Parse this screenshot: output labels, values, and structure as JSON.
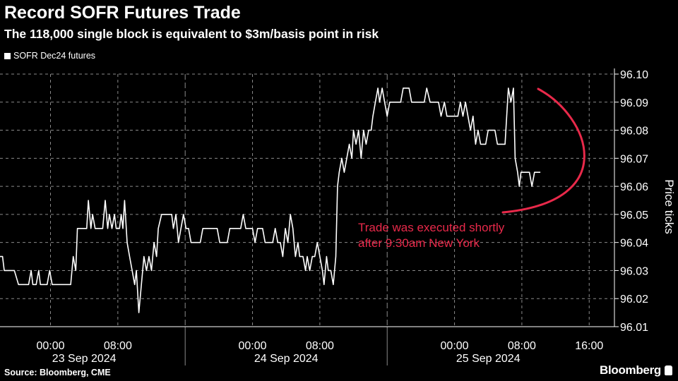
{
  "header": {
    "title": "Record SOFR Futures Trade",
    "subtitle": "The 118,000 single block is equivalent to $3m/basis point in risk"
  },
  "footer": {
    "source": "Source: Bloomberg, CME",
    "brand": "Bloomberg"
  },
  "colors": {
    "background": "#000000",
    "series": "#ffffff",
    "annotation": "#e8294a",
    "grid": "#8a8a8a"
  },
  "chart_data": {
    "type": "line",
    "title": "Record SOFR Futures Trade",
    "subtitle": "The 118,000 single block is equivalent to $3m/basis point in risk",
    "legend": [
      "SOFR Dec24 futures"
    ],
    "legend_position": "top-left",
    "ylabel": "Price ticks",
    "ylim": [
      96.01,
      96.1
    ],
    "y_ticks": [
      "96.10",
      "96.09",
      "96.08",
      "96.07",
      "96.06",
      "96.05",
      "96.04",
      "96.03",
      "96.02",
      "96.01"
    ],
    "x_tick_labels": [
      "00:00",
      "08:00",
      "00:00",
      "08:00",
      "00:00",
      "08:00",
      "16:00"
    ],
    "x_tick_hours": [
      0,
      8,
      24,
      32,
      48,
      56,
      64
    ],
    "x_day_labels": [
      "23 Sep 2024",
      "24 Sep 2024",
      "25 Sep 2024"
    ],
    "x_day_hours": [
      4,
      28,
      52
    ],
    "x_day_boundaries_hours": [
      16,
      40
    ],
    "xlim_hours": [
      -6,
      67
    ],
    "grid": true,
    "annotation": "Trade was executed shortly after 9:30am New York",
    "series": [
      {
        "name": "SOFR Dec24 futures",
        "points": [
          [
            -6,
            96.035
          ],
          [
            -5.7,
            96.035
          ],
          [
            -5.5,
            96.03
          ],
          [
            -4.3,
            96.03
          ],
          [
            -3.8,
            96.025
          ],
          [
            -2.6,
            96.025
          ],
          [
            -2.3,
            96.03
          ],
          [
            -2.1,
            96.025
          ],
          [
            -1.7,
            96.025
          ],
          [
            -1.4,
            96.03
          ],
          [
            -1.2,
            96.025
          ],
          [
            -0.4,
            96.025
          ],
          [
            -0.1,
            96.03
          ],
          [
            0.2,
            96.025
          ],
          [
            2.4,
            96.025
          ],
          [
            2.7,
            96.035
          ],
          [
            3.0,
            96.03
          ],
          [
            3.2,
            96.045
          ],
          [
            4.3,
            96.045
          ],
          [
            4.5,
            96.055
          ],
          [
            4.8,
            96.045
          ],
          [
            5.0,
            96.05
          ],
          [
            5.3,
            96.045
          ],
          [
            6.2,
            96.045
          ],
          [
            6.5,
            96.055
          ],
          [
            6.8,
            96.045
          ],
          [
            7.0,
            96.05
          ],
          [
            7.3,
            96.045
          ],
          [
            7.6,
            96.05
          ],
          [
            7.8,
            96.045
          ],
          [
            8.2,
            96.045
          ],
          [
            8.4,
            96.05
          ],
          [
            8.6,
            96.045
          ],
          [
            8.8,
            96.055
          ],
          [
            9.1,
            96.04
          ],
          [
            9.4,
            96.035
          ],
          [
            9.7,
            96.03
          ],
          [
            10.0,
            96.025
          ],
          [
            10.2,
            96.03
          ],
          [
            10.5,
            96.015
          ],
          [
            10.8,
            96.025
          ],
          [
            11.1,
            96.035
          ],
          [
            11.4,
            96.03
          ],
          [
            11.7,
            96.035
          ],
          [
            12.0,
            96.03
          ],
          [
            12.3,
            96.04
          ],
          [
            12.6,
            96.035
          ],
          [
            12.8,
            96.045
          ],
          [
            13.2,
            96.05
          ],
          [
            14.4,
            96.05
          ],
          [
            14.6,
            96.045
          ],
          [
            14.9,
            96.05
          ],
          [
            15.2,
            96.04
          ],
          [
            15.5,
            96.045
          ],
          [
            15.8,
            96.05
          ],
          [
            16.1,
            96.045
          ],
          [
            16.4,
            96.045
          ],
          [
            16.7,
            96.04
          ],
          [
            17.8,
            96.04
          ],
          [
            18.1,
            96.045
          ],
          [
            19.8,
            96.045
          ],
          [
            20.1,
            96.04
          ],
          [
            21.0,
            96.04
          ],
          [
            21.3,
            96.045
          ],
          [
            22.6,
            96.045
          ],
          [
            22.9,
            96.05
          ],
          [
            23.2,
            96.045
          ],
          [
            24.0,
            96.045
          ],
          [
            24.3,
            96.04
          ],
          [
            24.6,
            96.045
          ],
          [
            25.2,
            96.045
          ],
          [
            25.5,
            96.04
          ],
          [
            26.4,
            96.04
          ],
          [
            26.7,
            96.045
          ],
          [
            27.0,
            96.04
          ],
          [
            27.3,
            96.04
          ],
          [
            27.6,
            96.035
          ],
          [
            27.9,
            96.045
          ],
          [
            28.2,
            96.04
          ],
          [
            28.5,
            96.05
          ],
          [
            28.8,
            96.045
          ],
          [
            29.1,
            96.035
          ],
          [
            29.4,
            96.04
          ],
          [
            29.6,
            96.035
          ],
          [
            30.0,
            96.035
          ],
          [
            30.3,
            96.03
          ],
          [
            30.5,
            96.035
          ],
          [
            30.8,
            96.03
          ],
          [
            31.1,
            96.035
          ],
          [
            31.4,
            96.035
          ],
          [
            31.7,
            96.04
          ],
          [
            32.0,
            96.035
          ],
          [
            32.3,
            96.03
          ],
          [
            32.5,
            96.025
          ],
          [
            32.8,
            96.035
          ],
          [
            33.0,
            96.03
          ],
          [
            33.3,
            96.03
          ],
          [
            33.6,
            96.025
          ],
          [
            33.9,
            96.035
          ],
          [
            34.1,
            96.06
          ],
          [
            34.3,
            96.065
          ],
          [
            34.6,
            96.07
          ],
          [
            34.9,
            96.065
          ],
          [
            35.2,
            96.07
          ],
          [
            35.5,
            96.075
          ],
          [
            35.8,
            96.07
          ],
          [
            36.0,
            96.08
          ],
          [
            36.3,
            96.075
          ],
          [
            36.6,
            96.08
          ],
          [
            36.9,
            96.07
          ],
          [
            37.2,
            96.08
          ],
          [
            37.5,
            96.075
          ],
          [
            37.8,
            96.08
          ],
          [
            38.1,
            96.08
          ],
          [
            38.3,
            96.085
          ],
          [
            38.6,
            96.09
          ],
          [
            38.9,
            96.095
          ],
          [
            39.1,
            96.09
          ],
          [
            39.4,
            96.095
          ],
          [
            39.7,
            96.09
          ],
          [
            40.0,
            96.085
          ],
          [
            40.3,
            96.09
          ],
          [
            41.6,
            96.09
          ],
          [
            41.9,
            96.095
          ],
          [
            42.6,
            96.095
          ],
          [
            42.9,
            96.09
          ],
          [
            44.4,
            96.09
          ],
          [
            44.7,
            96.095
          ],
          [
            45.1,
            96.09
          ],
          [
            46.1,
            96.09
          ],
          [
            46.4,
            96.085
          ],
          [
            46.8,
            96.09
          ],
          [
            47.1,
            96.085
          ],
          [
            48.4,
            96.085
          ],
          [
            48.7,
            96.09
          ],
          [
            49.0,
            96.085
          ],
          [
            49.3,
            96.09
          ],
          [
            49.6,
            96.085
          ],
          [
            49.9,
            96.08
          ],
          [
            50.2,
            96.085
          ],
          [
            50.5,
            96.075
          ],
          [
            50.8,
            96.08
          ],
          [
            51.1,
            96.075
          ],
          [
            51.7,
            96.075
          ],
          [
            52.0,
            96.08
          ],
          [
            52.8,
            96.08
          ],
          [
            53.1,
            96.075
          ],
          [
            54.0,
            96.075
          ],
          [
            54.4,
            96.095
          ],
          [
            54.7,
            96.09
          ],
          [
            55.0,
            96.095
          ],
          [
            55.2,
            96.07
          ],
          [
            55.5,
            96.065
          ],
          [
            55.7,
            96.06
          ],
          [
            55.9,
            96.065
          ],
          [
            56.9,
            96.065
          ],
          [
            57.2,
            96.06
          ],
          [
            57.5,
            96.065
          ],
          [
            58.2,
            96.065
          ]
        ]
      }
    ]
  }
}
